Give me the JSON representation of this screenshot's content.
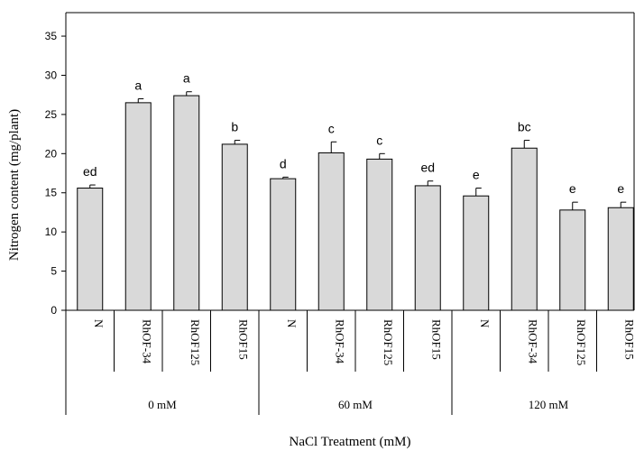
{
  "chart_data": {
    "type": "bar",
    "ylabel": "Nitrogen content (mg/plant)",
    "xlabel": "NaCl Treatment (mM)",
    "ylim": [
      0,
      38
    ],
    "yticks": [
      0,
      5,
      10,
      15,
      20,
      25,
      30,
      35
    ],
    "grid": false,
    "legend": "none",
    "bar_color": "#d9d9d9",
    "groups": [
      {
        "label": "0 mM",
        "bars": [
          {
            "category": "N",
            "value": 15.6,
            "error": 0.4,
            "letter": "ed"
          },
          {
            "category": "RhOF-34",
            "value": 26.5,
            "error": 0.5,
            "letter": "a"
          },
          {
            "category": "RhOF125",
            "value": 27.4,
            "error": 0.5,
            "letter": "a"
          },
          {
            "category": "RhOF15",
            "value": 21.2,
            "error": 0.5,
            "letter": "b"
          }
        ]
      },
      {
        "label": "60 mM",
        "bars": [
          {
            "category": "N",
            "value": 16.8,
            "error": 0.2,
            "letter": "d"
          },
          {
            "category": "RhOF-34",
            "value": 20.1,
            "error": 1.4,
            "letter": "c"
          },
          {
            "category": "RhOF125",
            "value": 19.3,
            "error": 0.7,
            "letter": "c"
          },
          {
            "category": "RhOF15",
            "value": 15.9,
            "error": 0.6,
            "letter": "ed"
          }
        ]
      },
      {
        "label": "120 mM",
        "bars": [
          {
            "category": "N",
            "value": 14.6,
            "error": 1.0,
            "letter": "e"
          },
          {
            "category": "RhOF-34",
            "value": 20.7,
            "error": 1.0,
            "letter": "bc"
          },
          {
            "category": "RhOF125",
            "value": 12.8,
            "error": 1.0,
            "letter": "e"
          },
          {
            "category": "RhOF15",
            "value": 13.1,
            "error": 0.7,
            "letter": "e"
          }
        ]
      }
    ]
  }
}
